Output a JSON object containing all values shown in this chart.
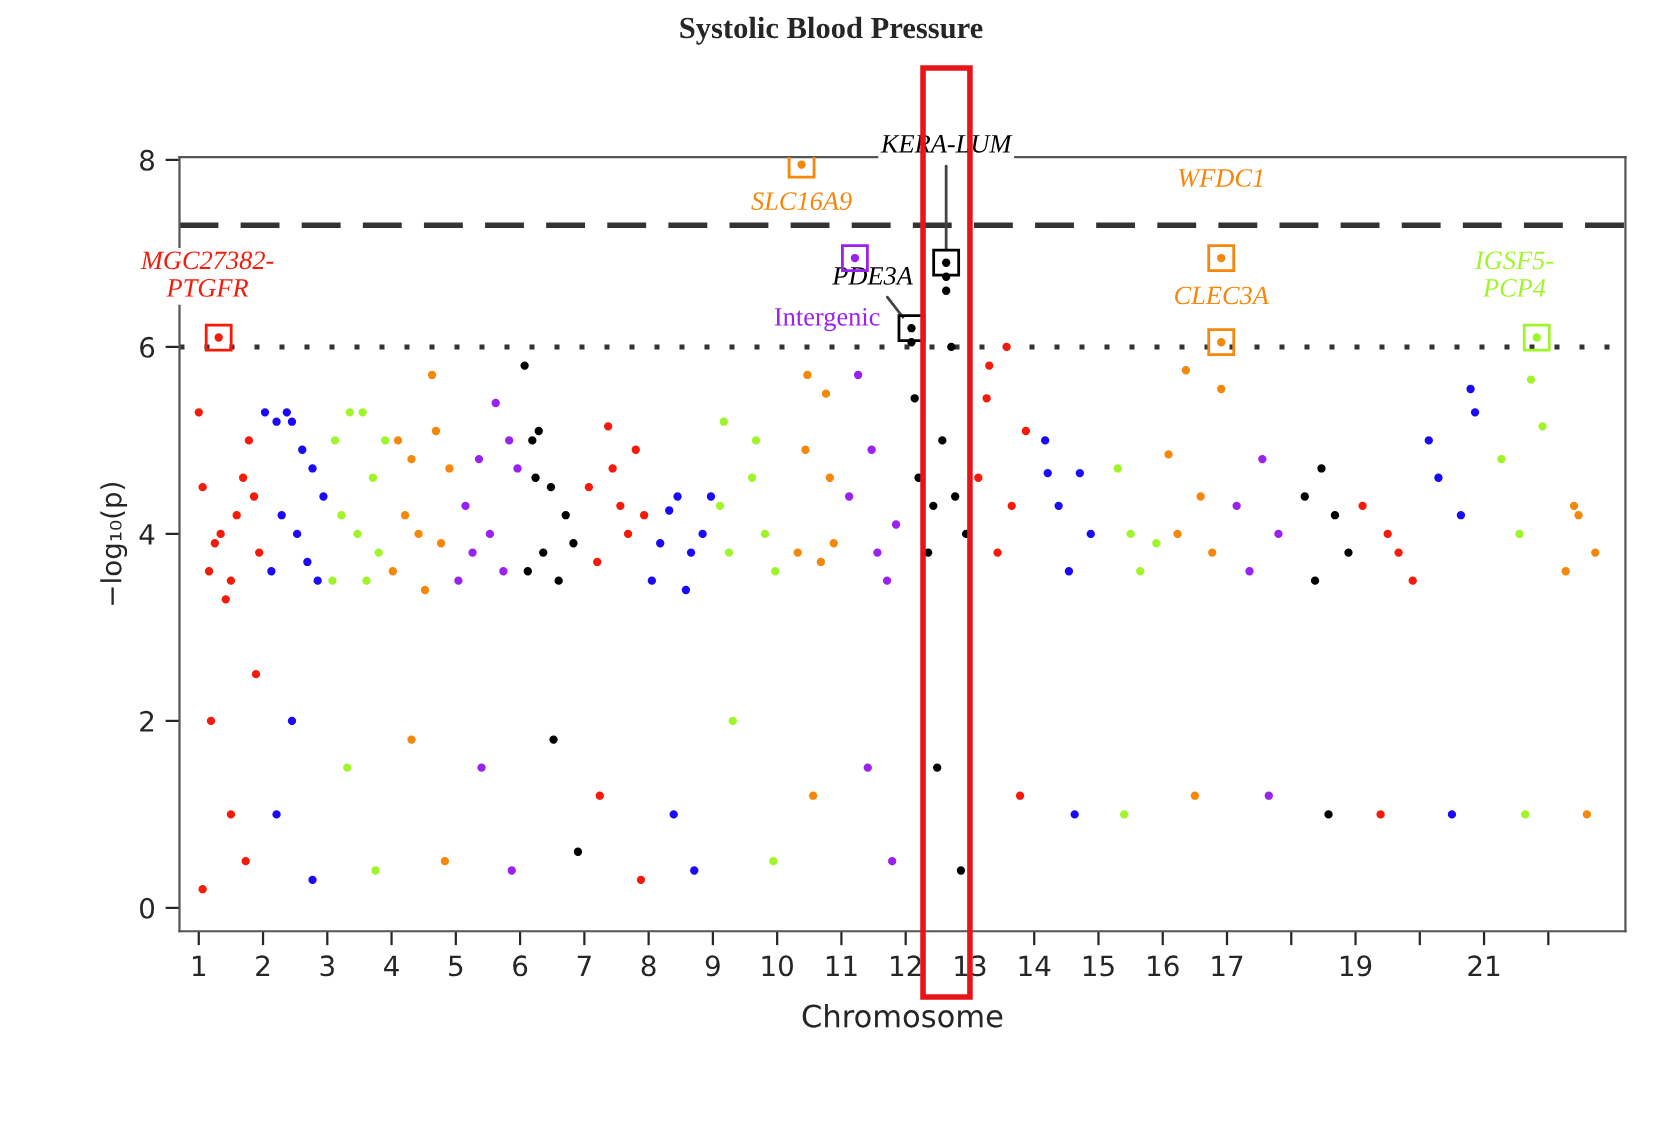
{
  "chart_data": {
    "type": "scatter",
    "title": "Systolic Blood Pressure",
    "xlabel": "Chromosome",
    "ylabel": "−log₁₀(p)",
    "xlim": [
      0.7,
      23.2
    ],
    "ylim": [
      -0.25,
      8.03
    ],
    "xticks": [
      1,
      2,
      3,
      4,
      5,
      6,
      7,
      8,
      9,
      10,
      11,
      12,
      13,
      14,
      15,
      16,
      17,
      {
        "value": 18,
        "label": null
      },
      19,
      {
        "value": 20,
        "label": null
      },
      21,
      {
        "value": 22,
        "label": null
      }
    ],
    "yticks": [
      0,
      2,
      4,
      6,
      8
    ],
    "marker": "circle",
    "grid": false,
    "series": [
      {
        "color": "#f51a0a",
        "x": [
          1.0,
          1.06,
          1.16,
          1.25,
          1.34,
          1.42,
          1.5,
          1.59,
          1.69,
          1.78,
          1.86,
          1.94,
          1.31,
          1.19,
          1.5,
          1.73,
          1.06,
          1.89
        ],
        "values": [
          5.3,
          4.5,
          3.6,
          3.9,
          4.0,
          3.3,
          3.5,
          4.2,
          4.6,
          5.0,
          4.4,
          3.8,
          6.1,
          2.0,
          1.0,
          0.5,
          0.2,
          2.5
        ]
      },
      {
        "color": "#1a0af5",
        "x": [
          2.03,
          2.21,
          2.37,
          2.45,
          2.61,
          2.77,
          2.94,
          2.29,
          2.53,
          2.13,
          2.69,
          2.85,
          2.45,
          2.21,
          2.77
        ],
        "values": [
          5.3,
          5.2,
          5.3,
          5.2,
          4.9,
          4.7,
          4.4,
          4.2,
          4.0,
          3.6,
          3.7,
          3.5,
          2.0,
          1.0,
          0.3
        ]
      },
      {
        "color": "#a0f52a",
        "x": [
          3.12,
          3.35,
          3.55,
          3.71,
          3.9,
          3.22,
          3.47,
          3.8,
          3.08,
          3.61,
          3.31,
          3.75
        ],
        "values": [
          5.0,
          5.3,
          5.3,
          4.6,
          5.0,
          4.2,
          4.0,
          3.8,
          3.5,
          3.5,
          1.5,
          0.4
        ]
      },
      {
        "color": "#f5870a",
        "x": [
          4.1,
          4.31,
          4.63,
          4.69,
          4.9,
          4.21,
          4.42,
          4.77,
          4.02,
          4.52,
          4.31,
          4.83
        ],
        "values": [
          5.0,
          4.8,
          5.7,
          5.1,
          4.7,
          4.2,
          4.0,
          3.9,
          3.6,
          3.4,
          1.8,
          0.5
        ]
      },
      {
        "color": "#9a22f0",
        "x": [
          5.15,
          5.36,
          5.62,
          5.83,
          5.96,
          5.26,
          5.53,
          5.74,
          5.04,
          5.4,
          5.87
        ],
        "values": [
          4.3,
          4.8,
          5.4,
          5.0,
          4.7,
          3.8,
          4.0,
          3.6,
          3.5,
          1.5,
          0.4
        ]
      },
      {
        "color": "#000000",
        "x": [
          6.07,
          6.19,
          6.24,
          6.29,
          6.48,
          6.71,
          6.83,
          6.36,
          6.6,
          6.12,
          6.52,
          6.9
        ],
        "values": [
          5.8,
          5.0,
          4.6,
          5.1,
          4.5,
          4.2,
          3.9,
          3.8,
          3.5,
          3.6,
          1.8,
          0.6
        ]
      },
      {
        "color": "#f51a0a",
        "x": [
          7.37,
          7.8,
          7.44,
          7.07,
          7.56,
          7.68,
          7.93,
          7.2,
          7.24,
          7.88
        ],
        "values": [
          5.15,
          4.9,
          4.7,
          4.5,
          4.3,
          4.0,
          4.2,
          3.7,
          1.2,
          0.3
        ]
      },
      {
        "color": "#1a0af5",
        "x": [
          8.45,
          8.32,
          8.97,
          8.18,
          8.66,
          8.84,
          8.05,
          8.58,
          8.39,
          8.71
        ],
        "values": [
          4.4,
          4.25,
          4.4,
          3.9,
          3.8,
          4.0,
          3.5,
          3.4,
          1.0,
          0.4
        ]
      },
      {
        "color": "#a0f52a",
        "x": [
          9.17,
          9.67,
          9.61,
          9.11,
          9.25,
          9.81,
          9.97,
          9.31,
          9.94
        ],
        "values": [
          5.2,
          5.0,
          4.6,
          4.3,
          3.8,
          4.0,
          3.6,
          2.0,
          0.5
        ]
      },
      {
        "color": "#f5870a",
        "x": [
          10.47,
          10.76,
          10.44,
          10.82,
          10.38,
          10.32,
          10.68,
          10.88,
          10.56
        ],
        "values": [
          5.7,
          5.5,
          4.9,
          4.6,
          7.95,
          3.8,
          3.7,
          3.9,
          1.2
        ]
      },
      {
        "color": "#9a22f0",
        "x": [
          11.21,
          11.26,
          11.47,
          11.12,
          11.56,
          11.85,
          11.71,
          11.41,
          11.79
        ],
        "values": [
          6.95,
          5.7,
          4.9,
          4.4,
          3.8,
          4.1,
          3.5,
          1.5,
          0.5
        ]
      },
      {
        "color": "#000000",
        "x": [
          12.09,
          12.09,
          12.63,
          12.63,
          12.63,
          12.71,
          12.14,
          12.57,
          12.2,
          12.43,
          12.77,
          12.94,
          12.35,
          12.49,
          12.86
        ],
        "values": [
          6.2,
          6.05,
          6.9,
          6.75,
          6.6,
          6.0,
          5.45,
          5.0,
          4.6,
          4.3,
          4.4,
          4.0,
          3.8,
          1.5,
          0.4
        ]
      },
      {
        "color": "#f51a0a",
        "x": [
          13.57,
          13.3,
          13.26,
          13.87,
          13.13,
          13.65,
          13.43,
          13.78
        ],
        "values": [
          6.0,
          5.8,
          5.45,
          5.1,
          4.6,
          4.3,
          3.8,
          1.2
        ]
      },
      {
        "color": "#1a0af5",
        "x": [
          14.17,
          14.21,
          14.71,
          14.38,
          14.88,
          14.54,
          14.63
        ],
        "values": [
          5.0,
          4.65,
          4.65,
          4.3,
          4.0,
          3.6,
          1.0
        ]
      },
      {
        "color": "#a0f52a",
        "x": [
          15.3,
          15.5,
          15.65,
          15.9,
          15.4
        ],
        "values": [
          4.7,
          4.0,
          3.6,
          3.9,
          1.0
        ]
      },
      {
        "color": "#f5870a",
        "x": [
          16.91,
          16.91,
          16.36,
          16.91,
          16.09,
          16.59,
          16.23,
          16.77,
          16.5
        ],
        "values": [
          6.95,
          6.05,
          5.75,
          5.55,
          4.85,
          4.4,
          4.0,
          3.8,
          1.2
        ]
      },
      {
        "color": "#9a22f0",
        "x": [
          17.55,
          17.15,
          17.8,
          17.35,
          17.65
        ],
        "values": [
          4.8,
          4.3,
          4.0,
          3.6,
          1.2
        ]
      },
      {
        "color": "#000000",
        "x": [
          18.47,
          18.21,
          18.68,
          18.89,
          18.37,
          18.58
        ],
        "values": [
          4.7,
          4.4,
          4.2,
          3.8,
          3.5,
          1.0
        ]
      },
      {
        "color": "#f51a0a",
        "x": [
          19.11,
          19.5,
          19.67,
          19.89,
          19.39
        ],
        "values": [
          4.3,
          4.0,
          3.8,
          3.5,
          1.0
        ]
      },
      {
        "color": "#1a0af5",
        "x": [
          20.79,
          20.86,
          20.14,
          20.29,
          20.64,
          20.5
        ],
        "values": [
          5.55,
          5.3,
          5.0,
          4.6,
          4.2,
          1.0
        ]
      },
      {
        "color": "#a0f52a",
        "x": [
          21.82,
          21.73,
          21.91,
          21.27,
          21.55,
          21.64
        ],
        "values": [
          6.1,
          5.65,
          5.15,
          4.8,
          4.0,
          1.0
        ]
      },
      {
        "color": "#f5870a",
        "x": [
          22.4,
          22.47,
          22.73,
          22.27,
          22.6
        ],
        "values": [
          4.3,
          4.2,
          3.8,
          3.6,
          1.0
        ]
      }
    ],
    "ref_lines": [
      {
        "axis": "y",
        "value": 7.3,
        "line_style": "dashed",
        "color": "#333333"
      },
      {
        "axis": "y",
        "value": 6,
        "line_style": "dotted",
        "color": "#333333"
      }
    ],
    "annotations": [
      {
        "text": "MGC27382-\nPTGFR",
        "x": 1.31,
        "y": 6.1
      },
      {
        "text": "SLC16A9",
        "x": 10.38,
        "y": 7.95
      },
      {
        "text": "Intergenic",
        "x": 11.21,
        "y": 6.95
      },
      {
        "text": "PDE3A",
        "x": 12.09,
        "y": 6.2
      },
      {
        "text": "KERA-LUM",
        "x": 12.63,
        "y": 6.9
      },
      {
        "text": "WFDC1",
        "x": 16.91,
        "y": 6.95
      },
      {
        "text": "CLEC3A",
        "x": 16.91,
        "y": 6.05
      },
      {
        "text": "IGSF5-\nPCP4",
        "x": 21.82,
        "y": 6.1
      }
    ]
  }
}
